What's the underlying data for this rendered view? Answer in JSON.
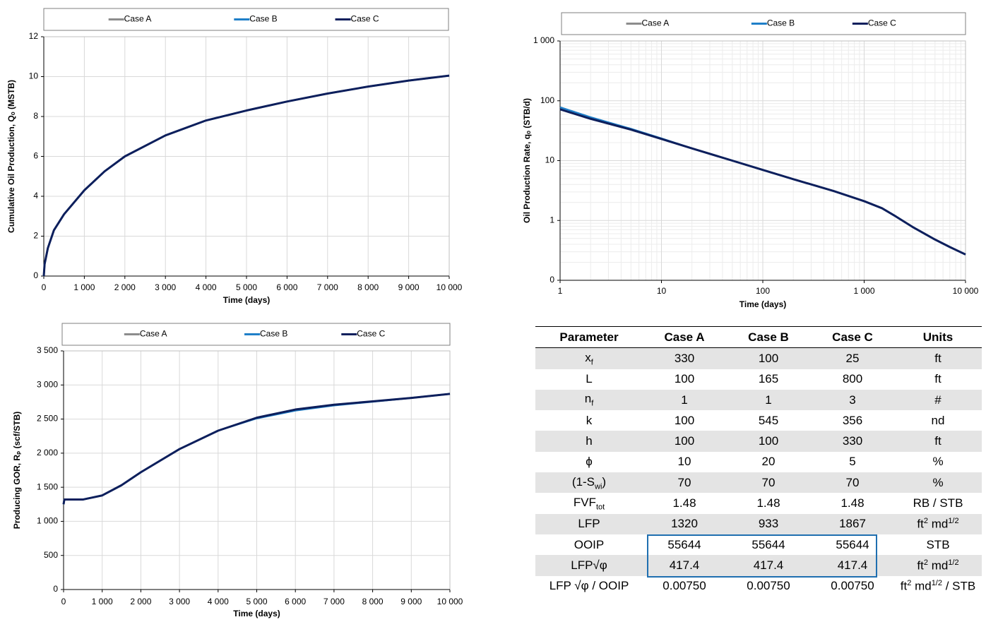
{
  "chart_data": [
    {
      "type": "line",
      "y_label": "Cumulative Oil Production, Qₒ (MSTB)",
      "x_label": "Time (days)",
      "x": [
        0,
        20,
        100,
        250,
        500,
        1000,
        1500,
        2000,
        3000,
        4000,
        5000,
        6000,
        7000,
        8000,
        9000,
        10000
      ],
      "series": [
        {
          "name": "Case A",
          "color": "#8c8c8c",
          "values": [
            0,
            0.6,
            1.4,
            2.3,
            3.1,
            4.3,
            5.25,
            6.0,
            7.05,
            7.8,
            8.3,
            8.75,
            9.15,
            9.5,
            9.8,
            10.05
          ]
        },
        {
          "name": "Case B",
          "color": "#1f7fc8",
          "values": [
            0,
            0.6,
            1.4,
            2.3,
            3.1,
            4.3,
            5.25,
            6.0,
            7.05,
            7.8,
            8.3,
            8.75,
            9.15,
            9.5,
            9.8,
            10.05
          ]
        },
        {
          "name": "Case C",
          "color": "#0d1f5c",
          "values": [
            0,
            0.6,
            1.4,
            2.3,
            3.1,
            4.3,
            5.25,
            6.0,
            7.05,
            7.8,
            8.3,
            8.75,
            9.15,
            9.5,
            9.8,
            10.05
          ]
        }
      ],
      "xlim": [
        0,
        10000
      ],
      "xticks": [
        0,
        {
          "value": 1000,
          "label": "1 000"
        },
        {
          "value": 2000,
          "label": "2 000"
        },
        {
          "value": 3000,
          "label": "3 000"
        },
        {
          "value": 4000,
          "label": "4 000"
        },
        {
          "value": 5000,
          "label": "5 000"
        },
        {
          "value": 6000,
          "label": "6 000"
        },
        {
          "value": 7000,
          "label": "7 000"
        },
        {
          "value": 8000,
          "label": "8 000"
        },
        {
          "value": 9000,
          "label": "9 000"
        },
        {
          "value": 10000,
          "label": "10 000"
        }
      ],
      "ylim": [
        0,
        12
      ],
      "yticks": [
        0,
        2,
        4,
        6,
        8,
        10,
        12
      ],
      "grid": true,
      "legend": "top"
    },
    {
      "type": "line",
      "y_label": "Oil Production Rate, qₒ (STB/d)",
      "x_label": "Time (days)",
      "x": [
        1,
        2,
        5,
        10,
        20,
        50,
        100,
        200,
        500,
        1000,
        1500,
        2000,
        3000,
        5000,
        7000,
        10000
      ],
      "series": [
        {
          "name": "Case A",
          "color": "#8c8c8c",
          "values": [
            72,
            50,
            33,
            23,
            16,
            10,
            7.0,
            4.9,
            3.1,
            2.1,
            1.6,
            1.2,
            0.78,
            0.48,
            0.36,
            0.27
          ]
        },
        {
          "name": "Case B",
          "color": "#1f7fc8",
          "values": [
            78,
            53,
            34,
            23.5,
            16,
            10,
            7.0,
            4.9,
            3.1,
            2.1,
            1.6,
            1.2,
            0.78,
            0.48,
            0.36,
            0.27
          ]
        },
        {
          "name": "Case C",
          "color": "#0d1f5c",
          "values": [
            72,
            50,
            33,
            23,
            16,
            10,
            7.0,
            4.9,
            3.1,
            2.1,
            1.6,
            1.2,
            0.78,
            0.48,
            0.36,
            0.27
          ]
        }
      ],
      "xlim": [
        1,
        10000
      ],
      "xlog": true,
      "xticks": [
        1,
        10,
        100,
        {
          "value": 1000,
          "label": "1 000"
        },
        {
          "value": 10000,
          "label": "10 000"
        }
      ],
      "ylim": [
        0.1,
        1000
      ],
      "ylog": true,
      "yticks": [
        {
          "value": 0.1,
          "label": "0"
        },
        1,
        10,
        100,
        {
          "value": 1000,
          "label": "1 000"
        }
      ],
      "grid": true,
      "legend": "top"
    },
    {
      "type": "line",
      "y_label": "Producing GOR, Rₚ (scf/STB)",
      "x_label": "Time (days)",
      "x": [
        0,
        20,
        500,
        1000,
        1500,
        2000,
        3000,
        4000,
        5000,
        6000,
        7000,
        8000,
        9000,
        10000
      ],
      "series": [
        {
          "name": "Case A",
          "color": "#8c8c8c",
          "values": [
            1250,
            1320,
            1320,
            1380,
            1530,
            1720,
            2060,
            2330,
            2520,
            2640,
            2710,
            2760,
            2810,
            2870
          ]
        },
        {
          "name": "Case B",
          "color": "#1f7fc8",
          "values": [
            1250,
            1320,
            1320,
            1380,
            1530,
            1720,
            2060,
            2330,
            2510,
            2625,
            2700,
            2755,
            2810,
            2870
          ]
        },
        {
          "name": "Case C",
          "color": "#0d1f5c",
          "values": [
            1250,
            1320,
            1320,
            1380,
            1530,
            1720,
            2060,
            2330,
            2520,
            2640,
            2710,
            2760,
            2810,
            2870
          ]
        }
      ],
      "xlim": [
        0,
        10000
      ],
      "xticks": [
        0,
        {
          "value": 1000,
          "label": "1 000"
        },
        {
          "value": 2000,
          "label": "2 000"
        },
        {
          "value": 3000,
          "label": "3 000"
        },
        {
          "value": 4000,
          "label": "4 000"
        },
        {
          "value": 5000,
          "label": "5 000"
        },
        {
          "value": 6000,
          "label": "6 000"
        },
        {
          "value": 7000,
          "label": "7 000"
        },
        {
          "value": 8000,
          "label": "8 000"
        },
        {
          "value": 9000,
          "label": "9 000"
        },
        {
          "value": 10000,
          "label": "10 000"
        }
      ],
      "ylim": [
        0,
        3500
      ],
      "yticks": [
        0,
        500,
        {
          "value": 1000,
          "label": "1 000"
        },
        {
          "value": 1500,
          "label": "1 500"
        },
        {
          "value": 2000,
          "label": "2 000"
        },
        {
          "value": 2500,
          "label": "2 500"
        },
        {
          "value": 3000,
          "label": "3 000"
        },
        {
          "value": 3500,
          "label": "3 500"
        }
      ],
      "grid": true,
      "legend": "top"
    }
  ],
  "table": {
    "header": [
      "Parameter",
      "Case A",
      "Case B",
      "Case C",
      "Units"
    ],
    "rows": [
      [
        [
          {
            "text": "x"
          },
          {
            "text": "f",
            "style": "sub"
          }
        ],
        "330",
        "100",
        "25",
        "ft"
      ],
      [
        "L",
        "100",
        "165",
        "800",
        "ft"
      ],
      [
        [
          {
            "text": "n"
          },
          {
            "text": "f",
            "style": "sub"
          }
        ],
        "1",
        "1",
        "3",
        "#"
      ],
      [
        "k",
        "100",
        "545",
        "356",
        "nd"
      ],
      [
        "h",
        "100",
        "100",
        "330",
        "ft"
      ],
      [
        "ϕ",
        "10",
        "20",
        "5",
        "%"
      ],
      [
        [
          {
            "text": "(1-S"
          },
          {
            "text": "wi",
            "style": "sub"
          },
          {
            "text": ")"
          }
        ],
        "70",
        "70",
        "70",
        "%"
      ],
      [
        [
          {
            "text": "FVF"
          },
          {
            "text": "tot",
            "style": "sub"
          }
        ],
        "1.48",
        "1.48",
        "1.48",
        "RB / STB"
      ],
      [
        "LFP",
        "1320",
        "933",
        "1867",
        [
          {
            "text": "ft"
          },
          {
            "text": "2",
            "style": "sup"
          },
          {
            "text": " md"
          },
          {
            "text": "1/2",
            "style": "sup"
          }
        ]
      ],
      [
        "OOIP",
        "55644",
        "55644",
        "55644",
        "STB"
      ],
      [
        "LFP√φ",
        "417.4",
        "417.4",
        "417.4",
        [
          {
            "text": "ft"
          },
          {
            "text": "2",
            "style": "sup"
          },
          {
            "text": " md"
          },
          {
            "text": "1/2",
            "style": "sup"
          }
        ]
      ],
      [
        "LFP  √φ / OOIP",
        "0.00750",
        "0.00750",
        "0.00750",
        [
          {
            "text": "ft"
          },
          {
            "text": "2",
            "style": "sup"
          },
          {
            "text": " md"
          },
          {
            "text": "1/2",
            "style": "sup"
          },
          {
            "text": " / STB"
          }
        ]
      ]
    ]
  }
}
